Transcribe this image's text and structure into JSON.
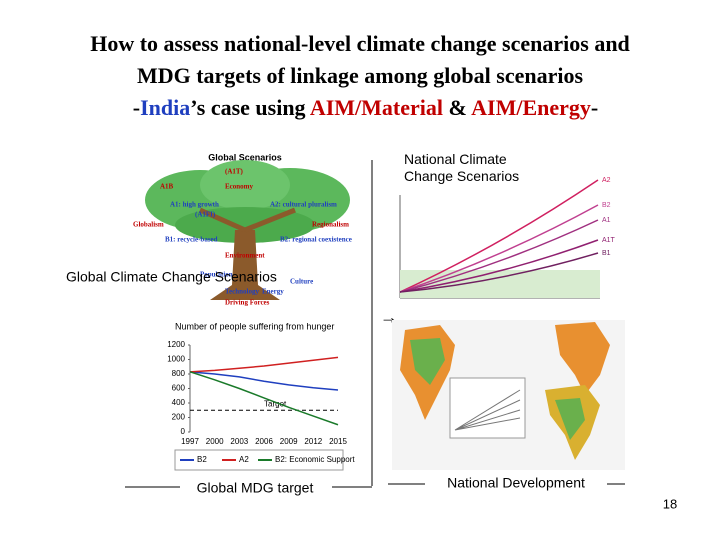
{
  "title": {
    "lines": [
      "How to assess national-level climate change scenarios and",
      "MDG targets of linkage among global scenarios"
    ],
    "line3": [
      "-",
      "India",
      "’s case using ",
      "AIM/Material",
      " & ",
      "AIM/Energy",
      "-"
    ]
  },
  "global_scenarios": {
    "heading": "Global Scenarios",
    "labels": [
      "(A1T)",
      "A1B",
      "Economy",
      "A1: high growth",
      "(A1FI)",
      "A2: cultural pluralism",
      "Globalism",
      "Regionalism",
      "B1: recycle-based",
      "B2: regional coexistence",
      "Environment",
      "Population",
      "Culture",
      "Technology",
      "Energy",
      "Driving Forces"
    ],
    "caption": "Global Climate Change Scenarios"
  },
  "national_climate": {
    "caption": "National Climate Change Scenarios",
    "scenario_labels": [
      "A2",
      "B2",
      "A1",
      "A1T",
      "B1"
    ]
  },
  "hunger_chart": {
    "title": "Number of people suffering from hunger",
    "x": [
      1997,
      2000,
      2003,
      2006,
      2009,
      2012,
      2015
    ],
    "xlim": [
      1997,
      2015
    ],
    "ylim": [
      0,
      1200
    ],
    "yticks": [
      0,
      200,
      400,
      600,
      800,
      1000,
      1200
    ],
    "series": [
      {
        "name": "B2",
        "color": "#1f3fbf",
        "values": [
          830,
          800,
          760,
          700,
          650,
          610,
          580
        ]
      },
      {
        "name": "A2",
        "color": "#d02020",
        "values": [
          830,
          850,
          880,
          910,
          950,
          990,
          1030
        ]
      },
      {
        "name": "B2: Economic Support",
        "color": "#1a7a2a",
        "values": [
          830,
          720,
          600,
          470,
          340,
          220,
          100
        ]
      }
    ],
    "target": {
      "label": "Target",
      "value": 300
    },
    "caption": "Global MDG target"
  },
  "national_development": {
    "caption": "National Development"
  },
  "page_number": "18"
}
